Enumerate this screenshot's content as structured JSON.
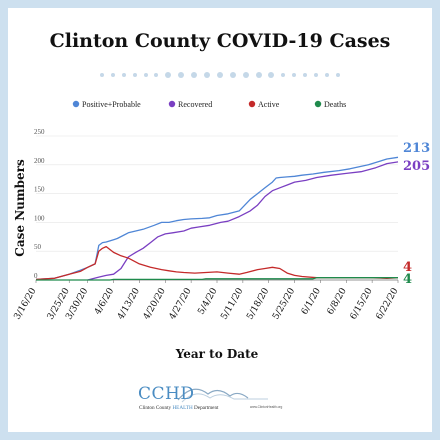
{
  "title": "Clinton County COVID-19 Cases",
  "colors": {
    "positive": "#4f86d6",
    "recovered": "#7a3fc2",
    "active": "#c42a2a",
    "deaths": "#1f8a4c",
    "axis": "#555555",
    "grid": "#e6e6e6"
  },
  "logo": {
    "name": "CCHD",
    "line_part1": "Clinton County ",
    "line_highlight": "HEALTH",
    "line_part2": " Department",
    "url": "www.ClintonHealth.org"
  },
  "chart_data": {
    "type": "line",
    "xlabel": "Year to Date",
    "ylabel": "Case Numbers",
    "ylim": [
      0,
      250
    ],
    "yticks": [
      0,
      50,
      100,
      150,
      200,
      250
    ],
    "xlim_days": [
      0,
      98
    ],
    "xtick_labels": [
      "3/16/20",
      "3/25/20",
      "3/30/20",
      "4/6/20",
      "4/13/20",
      "4/20/20",
      "4/27/20",
      "5/4/20",
      "5/11/20",
      "5/18/20",
      "5/25/20",
      "6/1/20",
      "6/8/20",
      "6/15/20",
      "6/22/20"
    ],
    "xtick_days": [
      0,
      9,
      14,
      21,
      28,
      35,
      42,
      49,
      56,
      63,
      70,
      77,
      84,
      91,
      98
    ],
    "legend_position": "top",
    "series": [
      {
        "name": "Positive+Probable",
        "color_key": "positive",
        "end_label": "213",
        "x": [
          0,
          5,
          9,
          12,
          14,
          16,
          17,
          18,
          19,
          21,
          22,
          25,
          27,
          29,
          32,
          34,
          36,
          38,
          40,
          42,
          45,
          47,
          49,
          52,
          55,
          58,
          60,
          62,
          64,
          65,
          66,
          68,
          70,
          72,
          75,
          78,
          82,
          85,
          90,
          95,
          98
        ],
        "y": [
          1,
          3,
          10,
          17,
          22,
          28,
          60,
          65,
          66,
          70,
          72,
          82,
          85,
          88,
          95,
          100,
          100,
          103,
          105,
          106,
          107,
          108,
          112,
          115,
          120,
          140,
          150,
          160,
          170,
          177,
          178,
          179,
          180,
          182,
          184,
          187,
          190,
          193,
          200,
          210,
          213
        ]
      },
      {
        "name": "Recovered",
        "color_key": "recovered",
        "end_label": "205",
        "x": [
          14,
          17,
          19,
          21,
          23,
          25,
          27,
          29,
          31,
          33,
          35,
          37,
          40,
          42,
          44,
          47,
          50,
          52,
          55,
          58,
          60,
          62,
          64,
          66,
          68,
          70,
          73,
          76,
          80,
          84,
          88,
          92,
          95,
          98
        ],
        "y": [
          0,
          5,
          8,
          10,
          20,
          40,
          48,
          55,
          65,
          75,
          80,
          82,
          85,
          90,
          92,
          95,
          100,
          102,
          110,
          120,
          130,
          145,
          155,
          160,
          165,
          170,
          173,
          178,
          182,
          185,
          188,
          195,
          202,
          205
        ]
      },
      {
        "name": "Active",
        "color_key": "active",
        "end_label": "4",
        "x": [
          0,
          5,
          9,
          12,
          14,
          16,
          17,
          18,
          19,
          21,
          23,
          25,
          28,
          31,
          34,
          36,
          38,
          40,
          43,
          46,
          49,
          52,
          55,
          57,
          60,
          62,
          64,
          66,
          68,
          70,
          72,
          76,
          80,
          85,
          90,
          95,
          98
        ],
        "y": [
          1,
          3,
          10,
          15,
          22,
          28,
          50,
          55,
          58,
          48,
          42,
          38,
          28,
          22,
          18,
          16,
          14,
          13,
          12,
          13,
          14,
          12,
          10,
          13,
          18,
          20,
          22,
          20,
          12,
          8,
          6,
          4,
          4,
          4,
          4,
          3,
          4
        ]
      },
      {
        "name": "Deaths",
        "color_key": "deaths",
        "end_label": "4",
        "x": [
          0,
          20,
          21,
          45,
          46,
          75,
          76,
          98
        ],
        "y": [
          0,
          0,
          1,
          1,
          2,
          2,
          4,
          4
        ]
      }
    ]
  }
}
